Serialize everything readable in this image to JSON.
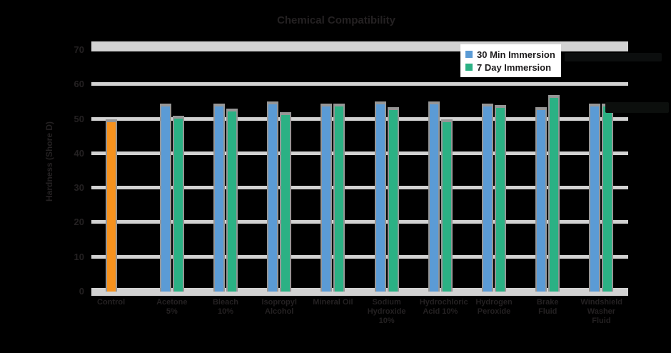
{
  "colors": {
    "background": "#000000",
    "baseline_bar_orange": "#F6921E",
    "series_blue": "#5B9BD5",
    "series_green": "#2BB184",
    "gridline_gray": "#D2D2D2",
    "bar_outline_gray": "#969696",
    "axis_text_dark": "#242122",
    "legend_background": "#FFFFFF",
    "legend_text": "#1D1B1C",
    "faint_artifact": "#0C0E0E"
  },
  "legend": {
    "items": [
      {
        "label": "30 Min Immersion",
        "color": "#5B9BD5",
        "swatch": "blue-square-icon"
      },
      {
        "label": "7 Day Immersion",
        "color": "#2BB184",
        "swatch": "green-square-icon"
      }
    ]
  },
  "chart_data": {
    "type": "bar",
    "title": "Chemical Compatibility",
    "xlabel": "",
    "ylabel": "Hardness (Shore D)",
    "ylim": [
      0,
      70
    ],
    "yticks": [
      0,
      10,
      20,
      30,
      40,
      50,
      60,
      70
    ],
    "grid": true,
    "legend_position": "top-right",
    "categories": [
      "Control",
      "Acetone 5%",
      "Bleach 10%",
      "Isopropyl Alcohol",
      "Mineral Oil",
      "Sodium Hydroxide 10%",
      "Hydrochloric Acid 10%",
      "Hydrogen Peroxide",
      "Brake Fluid",
      "Windshield Washer Fluid"
    ],
    "series": [
      {
        "name": "Control",
        "color": "#F6921E",
        "in_legend": false,
        "values": [
          50,
          null,
          null,
          null,
          null,
          null,
          null,
          null,
          null,
          null
        ]
      },
      {
        "name": "30 Min Immersion",
        "color": "#5B9BD5",
        "in_legend": true,
        "values": [
          null,
          54.5,
          54.5,
          55,
          54.5,
          55,
          55,
          54.5,
          53.5,
          54.5
        ]
      },
      {
        "name": "7 Day Immersion",
        "color": "#2BB184",
        "in_legend": true,
        "values": [
          null,
          51,
          53,
          52,
          54.5,
          53.5,
          50,
          54,
          57,
          54.5
        ]
      }
    ]
  }
}
